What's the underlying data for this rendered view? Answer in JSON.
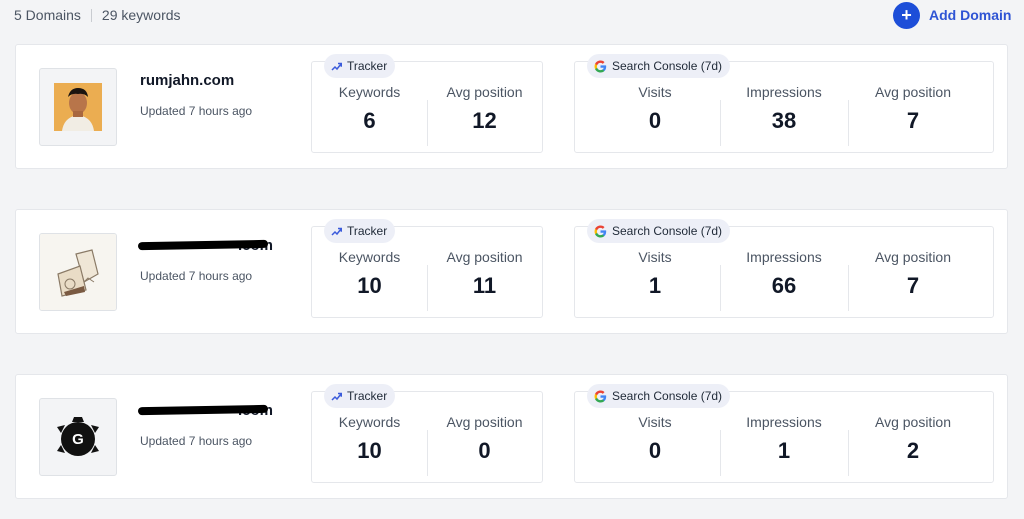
{
  "header": {
    "domains_count": "5 Domains",
    "keywords_count": "29 keywords",
    "add_domain_label": "Add Domain",
    "add_domain_icon": "+"
  },
  "labels": {
    "tracker": "Tracker",
    "search_console": "Search Console (7d)",
    "keywords": "Keywords",
    "avg_position": "Avg position",
    "visits": "Visits",
    "impressions": "Impressions"
  },
  "colors": {
    "accent": "#1d4ed8",
    "page_bg": "#f3f4f6",
    "card_bg": "#ffffff"
  },
  "domains": [
    {
      "name": "rumjahn.com",
      "updated": "Updated 7 hours ago",
      "thumbnail": "person-photo",
      "tracker": {
        "keywords": "6",
        "avg_position": "12"
      },
      "gsc": {
        "visits": "0",
        "impressions": "38",
        "avg_position": "7"
      }
    },
    {
      "name": ".com",
      "updated": "Updated 7 hours ago",
      "thumbnail": "tea-bag-logo",
      "tracker": {
        "keywords": "10",
        "avg_position": "11"
      },
      "gsc": {
        "visits": "1",
        "impressions": "66",
        "avg_position": "7"
      }
    },
    {
      "name": ".com",
      "updated": "Updated 7 hours ago",
      "thumbnail": "g-gear-logo",
      "tracker": {
        "keywords": "10",
        "avg_position": "0"
      },
      "gsc": {
        "visits": "0",
        "impressions": "1",
        "avg_position": "2"
      }
    }
  ]
}
